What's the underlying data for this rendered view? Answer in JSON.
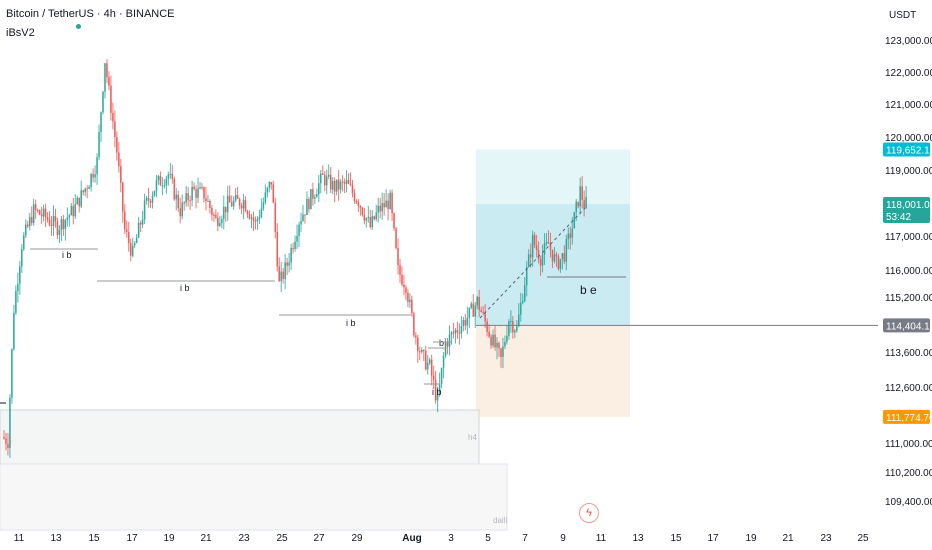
{
  "header": {
    "title": "Bitcoin / TetherUS · 4h · BINANCE",
    "indicator": "iBsV2",
    "unit": "USDT"
  },
  "colors": {
    "up": "#26a69a",
    "down": "#ef5350",
    "zone_top": "#cdeef3",
    "zone_mid": "#b7e4ec",
    "zone_low": "#fbefe4",
    "tag_cyan": "#00bcd4",
    "tag_green": "#26a69a",
    "tag_gray": "#787b86",
    "tag_orange": "#ff9800"
  },
  "chart_data": {
    "type": "candlestick",
    "y_ticks": [
      {
        "label": "123,000.00",
        "value": 123000
      },
      {
        "label": "122,000.00",
        "value": 122000
      },
      {
        "label": "121,000.00",
        "value": 121000
      },
      {
        "label": "120,000.00",
        "value": 120000
      },
      {
        "label": "119,000.00",
        "value": 119000
      },
      {
        "label": "117,000.00",
        "value": 117000
      },
      {
        "label": "116,000.00",
        "value": 116000
      },
      {
        "label": "115,200.00",
        "value": 115200
      },
      {
        "label": "113,600.00",
        "value": 113600
      },
      {
        "label": "112,600.00",
        "value": 112600
      },
      {
        "label": "111,000.00",
        "value": 111000
      },
      {
        "label": "110,200.00",
        "value": 110200
      },
      {
        "label": "109,400.00",
        "value": 109400
      }
    ],
    "x_ticks": [
      "11",
      "13",
      "15",
      "17",
      "19",
      "21",
      "23",
      "25",
      "27",
      "29",
      "Aug",
      "3",
      "5",
      "7",
      "9",
      "11",
      "13",
      "15",
      "17",
      "19",
      "21",
      "23",
      "25"
    ],
    "price_tags": [
      {
        "label": "119,652.10",
        "value": 119652,
        "color": "#00bcd4"
      },
      {
        "label": "118,001.01",
        "value": 118001,
        "color": "#26a69a",
        "sub": "53:42"
      },
      {
        "label": "114,404.11",
        "value": 114404,
        "color": "#787b86"
      },
      {
        "label": "111,774.76",
        "value": 111775,
        "color": "#ff9800"
      }
    ],
    "annotations": {
      "ib_labels": [
        "i b",
        "i b",
        "i b",
        "i b",
        "b",
        "i b"
      ],
      "be_label": "b e",
      "h4_label": "h4",
      "daily_label": "daili"
    },
    "lows_highs": {
      "high_marker": 123200,
      "last_close": 118001
    }
  }
}
